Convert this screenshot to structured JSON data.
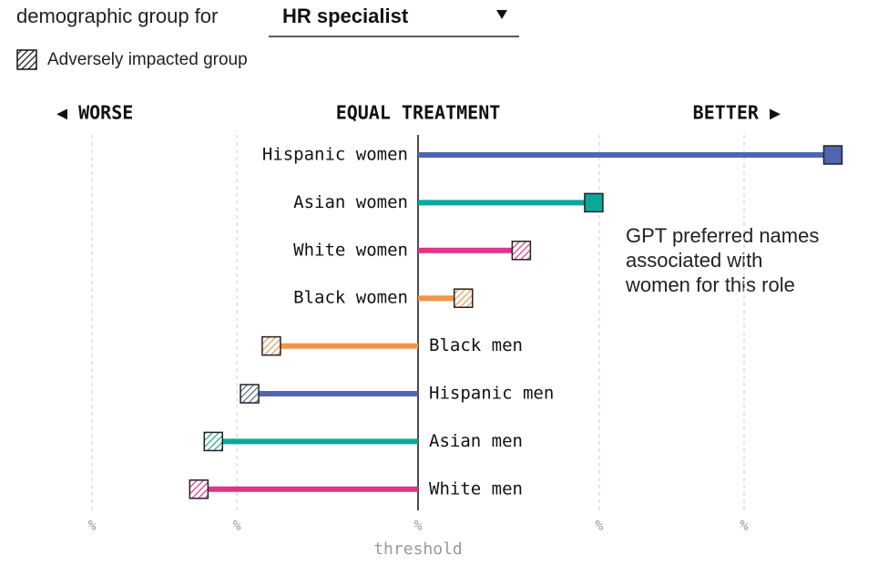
{
  "controls": {
    "label": "demographic group for",
    "selected": "HR specialist",
    "legend_label": "Adversely impacted group"
  },
  "chart_data": {
    "type": "lollipop",
    "direction_labels": [
      "◀ WORSE",
      "EQUAL TREATMENT",
      "BETTER ▶"
    ],
    "categories": [
      "Hispanic women",
      "Asian women",
      "White women",
      "Black women",
      "Black men",
      "Hispanic men",
      "Asian men",
      "White men"
    ],
    "values": [
      22.9,
      9.7,
      5.7,
      2.5,
      -8.1,
      -9.3,
      -11.3,
      -12.1
    ],
    "colors": [
      "#5165b0",
      "#0aa89a",
      "#e0338a",
      "#f5924a",
      "#f5924a",
      "#5165b0",
      "#0aa89a",
      "#e0338a"
    ],
    "adverse": [
      false,
      false,
      true,
      true,
      true,
      true,
      true,
      true
    ],
    "xlim": [
      -18,
      24
    ],
    "xticks": [
      {
        "value": -18,
        "label": "%"
      },
      {
        "value": -10,
        "label": "%"
      },
      {
        "value": 0,
        "label": "%"
      },
      {
        "value": 10,
        "label": "%"
      },
      {
        "value": 18,
        "label": "%"
      }
    ],
    "threshold_label": "threshold",
    "annotation": [
      "GPT preferred names",
      "associated with",
      "women for this role"
    ],
    "grid": true
  }
}
